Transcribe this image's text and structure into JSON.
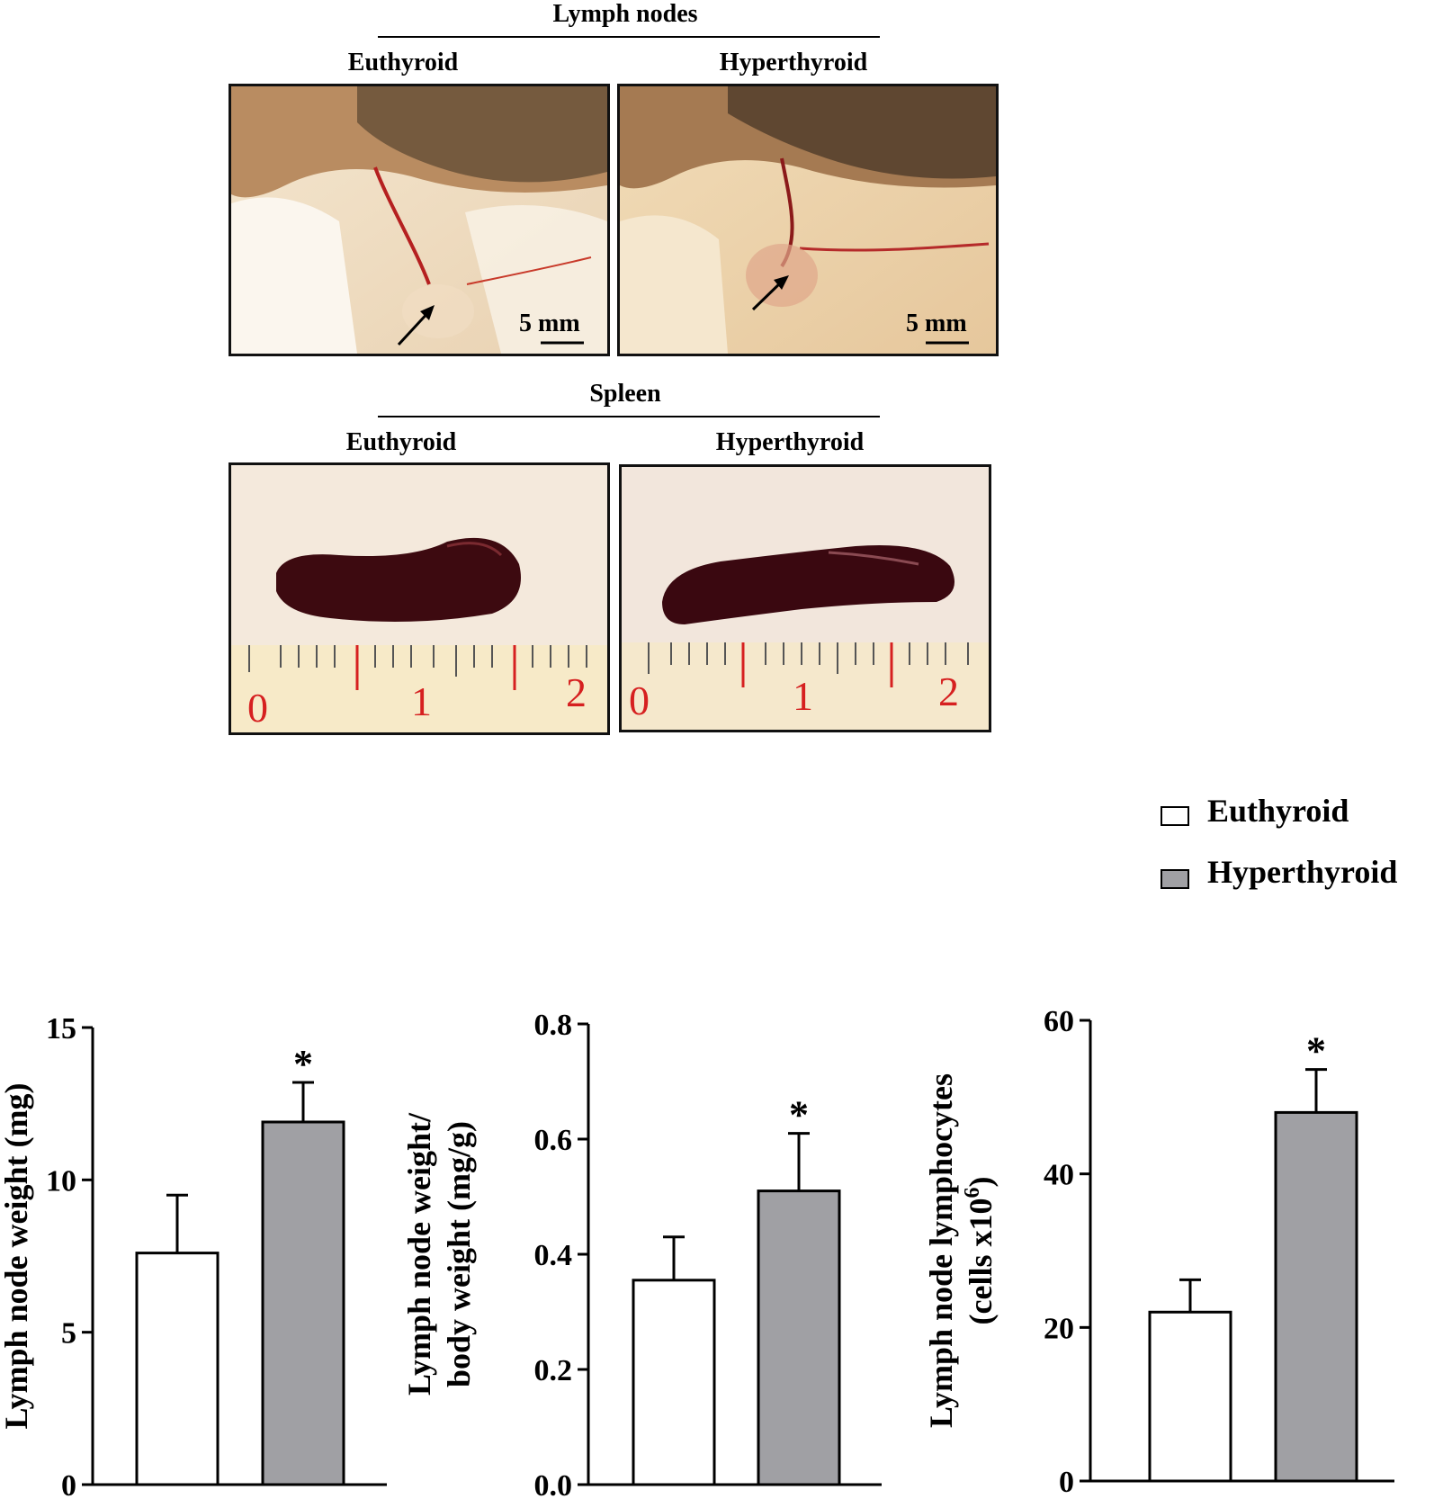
{
  "figure": {
    "lymph_section": {
      "title": "Lymph nodes",
      "left_label": "Euthyroid",
      "right_label": "Hyperthyroid",
      "scale_label": "5 mm"
    },
    "spleen_section": {
      "title": "Spleen",
      "left_label": "Euthyroid",
      "right_label": "Hyperthyroid"
    },
    "ruler_ticks": [
      "0",
      "1",
      "2"
    ],
    "legend": [
      {
        "name": "Euthyroid",
        "color": "#ffffff"
      },
      {
        "name": "Hyperthyroid",
        "color": "#a0a0a4"
      }
    ]
  },
  "chart_data": [
    {
      "type": "bar",
      "categories": [
        "Euthyroid",
        "Hyperthyroid"
      ],
      "values": [
        7.6,
        11.9
      ],
      "errors": [
        1.9,
        1.3
      ],
      "significance": [
        "",
        "*"
      ],
      "colors": [
        "#ffffff",
        "#a0a0a4"
      ],
      "title": "",
      "xlabel": "",
      "ylabel": "Lymph node weight (mg)",
      "ylim": [
        0,
        15
      ],
      "yticks": [
        "0",
        "5",
        "10",
        "15"
      ]
    },
    {
      "type": "bar",
      "categories": [
        "Euthyroid",
        "Hyperthyroid"
      ],
      "values": [
        0.355,
        0.51
      ],
      "errors": [
        0.075,
        0.1
      ],
      "significance": [
        "",
        "*"
      ],
      "colors": [
        "#ffffff",
        "#a0a0a4"
      ],
      "title": "",
      "xlabel": "",
      "ylabel": [
        "Lymph node weight/",
        "body weight (mg/g)"
      ],
      "ylim": [
        0,
        0.8
      ],
      "yticks": [
        "0.0",
        "0.2",
        "0.4",
        "0.6",
        "0.8"
      ]
    },
    {
      "type": "bar",
      "categories": [
        "Euthyroid",
        "Hyperthyroid"
      ],
      "values": [
        22,
        48
      ],
      "errors": [
        4.2,
        5.6
      ],
      "significance": [
        "",
        "*"
      ],
      "colors": [
        "#ffffff",
        "#a0a0a4"
      ],
      "title": "",
      "xlabel": "",
      "ylabel": [
        "Lymph node lymphocytes",
        "(cells x10",
        "6",
        ")"
      ],
      "ylim": [
        0,
        60
      ],
      "yticks": [
        "0",
        "20",
        "40",
        "60"
      ]
    }
  ]
}
